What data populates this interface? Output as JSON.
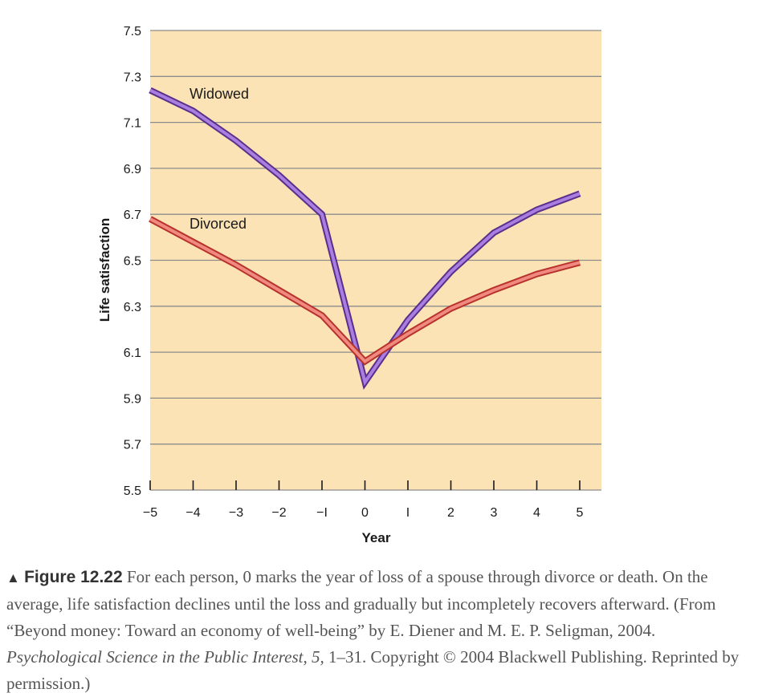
{
  "chart_data": {
    "type": "line",
    "xlabel": "Year",
    "ylabel": "Life satisfaction",
    "xlim": [
      -5,
      5
    ],
    "ylim": [
      5.5,
      7.5
    ],
    "x_ticks": [
      "−5",
      "−4",
      "−3",
      "−2",
      "−I",
      "0",
      "I",
      "2",
      "3",
      "4",
      "5"
    ],
    "y_ticks": [
      "7.5",
      "7.3",
      "7.1",
      "6.9",
      "6.7",
      "6.5",
      "6.3",
      "6.1",
      "5.9",
      "5.7",
      "5.5"
    ],
    "grid": true,
    "x": [
      -5,
      -4,
      -3,
      -2,
      -1,
      0,
      1,
      2,
      3,
      4,
      5
    ],
    "series": [
      {
        "name": "Widowed",
        "values": [
          7.24,
          7.15,
          7.02,
          6.87,
          6.7,
          5.97,
          6.24,
          6.45,
          6.62,
          6.72,
          6.79
        ],
        "color": "#a87fe0",
        "outline": "#5b2e8c"
      },
      {
        "name": "Divorced",
        "values": [
          6.68,
          6.58,
          6.48,
          6.37,
          6.26,
          6.06,
          6.18,
          6.29,
          6.37,
          6.44,
          6.49
        ],
        "color": "#f08a80",
        "outline": "#b8322c"
      }
    ],
    "colors": {
      "plot_background": "#fbe3b6",
      "gridline": "#8c8c8c"
    }
  },
  "caption": {
    "marker": "▲",
    "figure_label": "Figure 12.22",
    "text_1": " For each person, 0 marks the year of loss of a spouse through divorce or death. On the average, life satisfaction declines until the loss and gradually but incompletely recovers afterward. (From “Beyond money: Toward an economy of well-being” by E. Diener and M. E. P. Seligman, 2004. ",
    "journal": "Psychological Science in the Public Interest, 5,",
    "text_2": " 1–31. Copyright © 2004 Blackwell Publishing. Reprinted by permission.)"
  }
}
